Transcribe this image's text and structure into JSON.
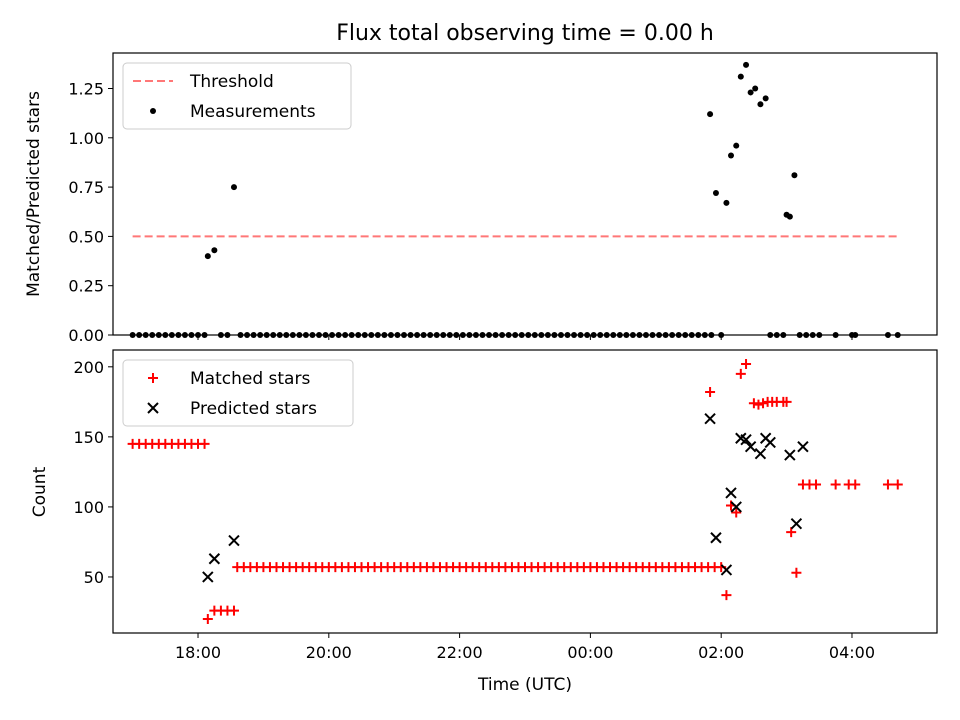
{
  "chart_data": [
    {
      "type": "scatter",
      "title": "Flux total observing time = 0.00 h",
      "xlabel": "",
      "ylabel": "Matched/Predicted stars",
      "xlim": [
        16.7,
        29.3
      ],
      "ylim": [
        0,
        1.43
      ],
      "x_ticks": [
        18,
        20,
        22,
        24,
        26,
        28
      ],
      "y_ticks": [
        0.0,
        0.25,
        0.5,
        0.75,
        1.0,
        1.25
      ],
      "y_tick_labels": [
        "0.00",
        "0.25",
        "0.50",
        "0.75",
        "1.00",
        "1.25"
      ],
      "legend_position": "upper-left",
      "series": [
        {
          "name": "Threshold",
          "kind": "dashed-line",
          "color": "#ff7777",
          "x": [
            17.0,
            28.7
          ],
          "y": [
            0.5,
            0.5
          ]
        },
        {
          "name": "Measurements",
          "kind": "dot",
          "color": "#000000",
          "x": [
            17.0,
            17.1,
            17.2,
            17.3,
            17.4,
            17.5,
            17.6,
            17.7,
            17.8,
            17.9,
            18.0,
            18.1,
            18.15,
            18.25,
            18.35,
            18.45,
            18.55,
            18.65,
            18.75,
            18.85,
            18.95,
            19.05,
            19.15,
            19.25,
            19.35,
            19.45,
            19.55,
            19.65,
            19.75,
            19.85,
            19.95,
            20.05,
            20.15,
            20.25,
            20.35,
            20.45,
            20.55,
            20.65,
            20.75,
            20.85,
            20.95,
            21.05,
            21.15,
            21.25,
            21.35,
            21.45,
            21.55,
            21.65,
            21.75,
            21.85,
            21.95,
            22.05,
            22.15,
            22.25,
            22.35,
            22.45,
            22.55,
            22.65,
            22.75,
            22.85,
            22.95,
            23.05,
            23.15,
            23.25,
            23.35,
            23.45,
            23.55,
            23.65,
            23.75,
            23.85,
            23.95,
            24.05,
            24.15,
            24.25,
            24.35,
            24.45,
            24.55,
            24.65,
            24.75,
            24.85,
            24.95,
            25.05,
            25.15,
            25.25,
            25.35,
            25.45,
            25.55,
            25.65,
            25.75,
            25.85,
            25.83,
            25.92,
            26.0,
            26.08,
            26.15,
            26.23,
            26.3,
            26.38,
            26.45,
            26.52,
            26.6,
            26.68,
            26.75,
            26.85,
            26.95,
            27.0,
            27.05,
            27.12,
            27.2,
            27.3,
            27.4,
            27.5,
            27.75,
            28.0,
            28.05,
            28.55,
            28.7
          ],
          "y": [
            0,
            0,
            0,
            0,
            0,
            0,
            0,
            0,
            0,
            0,
            0,
            0,
            0.4,
            0.43,
            0,
            0,
            0.75,
            0,
            0,
            0,
            0,
            0,
            0,
            0,
            0,
            0,
            0,
            0,
            0,
            0,
            0,
            0,
            0,
            0,
            0,
            0,
            0,
            0,
            0,
            0,
            0,
            0,
            0,
            0,
            0,
            0,
            0,
            0,
            0,
            0,
            0,
            0,
            0,
            0,
            0,
            0,
            0,
            0,
            0,
            0,
            0,
            0,
            0,
            0,
            0,
            0,
            0,
            0,
            0,
            0,
            0,
            0,
            0,
            0,
            0,
            0,
            0,
            0,
            0,
            0,
            0,
            0,
            0,
            0,
            0,
            0,
            0,
            0,
            0,
            0,
            1.12,
            0.72,
            0,
            0.67,
            0.91,
            0.96,
            1.31,
            1.37,
            1.23,
            1.25,
            1.17,
            1.2,
            0,
            0,
            0,
            0.61,
            0.6,
            0.81,
            0,
            0,
            0,
            0,
            0,
            0,
            0,
            0,
            0
          ]
        }
      ]
    },
    {
      "type": "scatter",
      "title": "",
      "xlabel": "Time (UTC)",
      "ylabel": "Count",
      "xlim": [
        16.7,
        29.3
      ],
      "ylim": [
        10,
        212
      ],
      "x_ticks": [
        18,
        20,
        22,
        24,
        26,
        28
      ],
      "x_tick_labels": [
        "18:00",
        "20:00",
        "22:00",
        "00:00",
        "02:00",
        "04:00"
      ],
      "y_ticks": [
        50,
        100,
        150,
        200
      ],
      "y_tick_labels": [
        "50",
        "100",
        "150",
        "200"
      ],
      "legend_position": "upper-left",
      "series": [
        {
          "name": "Matched stars",
          "kind": "plus",
          "color": "#ff0000",
          "x": [
            17.0,
            17.1,
            17.2,
            17.3,
            17.4,
            17.5,
            17.6,
            17.7,
            17.8,
            17.9,
            18.0,
            18.1,
            18.15,
            18.25,
            18.35,
            18.45,
            18.55,
            18.6,
            18.7,
            18.8,
            18.9,
            19.0,
            19.1,
            19.2,
            19.3,
            19.4,
            19.5,
            19.6,
            19.7,
            19.8,
            19.9,
            20.0,
            20.1,
            20.2,
            20.3,
            20.4,
            20.5,
            20.6,
            20.7,
            20.8,
            20.9,
            21.0,
            21.1,
            21.2,
            21.3,
            21.4,
            21.5,
            21.6,
            21.7,
            21.8,
            21.9,
            22.0,
            22.1,
            22.2,
            22.3,
            22.4,
            22.5,
            22.6,
            22.7,
            22.8,
            22.9,
            23.0,
            23.1,
            23.2,
            23.3,
            23.4,
            23.5,
            23.6,
            23.7,
            23.8,
            23.9,
            24.0,
            24.1,
            24.2,
            24.3,
            24.4,
            24.5,
            24.6,
            24.7,
            24.8,
            24.9,
            25.0,
            25.1,
            25.2,
            25.3,
            25.4,
            25.5,
            25.6,
            25.7,
            25.8,
            25.9,
            26.0,
            25.83,
            26.08,
            26.15,
            26.23,
            26.3,
            26.38,
            26.5,
            26.57,
            26.64,
            26.71,
            26.78,
            26.85,
            26.95,
            27.0,
            27.07,
            27.15,
            27.25,
            27.35,
            27.45,
            27.75,
            27.95,
            28.05,
            28.55,
            28.7
          ],
          "y": [
            145,
            145,
            145,
            145,
            145,
            145,
            145,
            145,
            145,
            145,
            145,
            145,
            20,
            26,
            26,
            26,
            26,
            57,
            57,
            57,
            57,
            57,
            57,
            57,
            57,
            57,
            57,
            57,
            57,
            57,
            57,
            57,
            57,
            57,
            57,
            57,
            57,
            57,
            57,
            57,
            57,
            57,
            57,
            57,
            57,
            57,
            57,
            57,
            57,
            57,
            57,
            57,
            57,
            57,
            57,
            57,
            57,
            57,
            57,
            57,
            57,
            57,
            57,
            57,
            57,
            57,
            57,
            57,
            57,
            57,
            57,
            57,
            57,
            57,
            57,
            57,
            57,
            57,
            57,
            57,
            57,
            57,
            57,
            57,
            57,
            57,
            57,
            57,
            57,
            57,
            57,
            57,
            182,
            37,
            101,
            96,
            195,
            202,
            174,
            173,
            174,
            175,
            175,
            175,
            175,
            175,
            82,
            53,
            116,
            116,
            116,
            116,
            116,
            116,
            116,
            116
          ]
        },
        {
          "name": "Predicted stars",
          "kind": "x",
          "color": "#000000",
          "x": [
            18.15,
            18.25,
            18.55,
            25.83,
            25.92,
            26.08,
            26.15,
            26.23,
            26.3,
            26.38,
            26.45,
            26.6,
            26.68,
            26.75,
            27.05,
            27.15,
            27.25
          ],
          "y": [
            50,
            63,
            76,
            163,
            78,
            55,
            110,
            100,
            149,
            148,
            143,
            138,
            149,
            146,
            137,
            88,
            143
          ]
        }
      ]
    }
  ]
}
